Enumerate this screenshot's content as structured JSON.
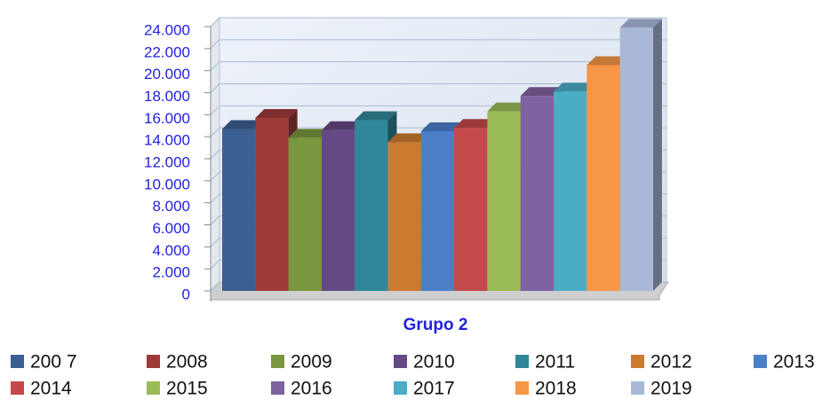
{
  "chart_data": {
    "type": "bar3d",
    "categories": [
      "Grupo 2"
    ],
    "series": [
      {
        "name": "200 7",
        "color": "#3c5f92",
        "values": [
          14700
        ]
      },
      {
        "name": "2008",
        "color": "#9e3a38",
        "values": [
          15700
        ]
      },
      {
        "name": "2009",
        "color": "#7a963e",
        "values": [
          13900
        ]
      },
      {
        "name": "2010",
        "color": "#654985",
        "values": [
          14600
        ]
      },
      {
        "name": "2011",
        "color": "#2f8799",
        "values": [
          15500
        ]
      },
      {
        "name": "2012",
        "color": "#cc7a30",
        "values": [
          13500
        ]
      },
      {
        "name": "2013",
        "color": "#4a7fc8",
        "values": [
          14500
        ]
      },
      {
        "name": "2014",
        "color": "#c4494a",
        "values": [
          14800
        ]
      },
      {
        "name": "2015",
        "color": "#9bbb59",
        "values": [
          16300
        ]
      },
      {
        "name": "2016",
        "color": "#7f62a0",
        "values": [
          17700
        ]
      },
      {
        "name": "2017",
        "color": "#4bacc6",
        "values": [
          18100
        ]
      },
      {
        "name": "2018",
        "color": "#f79646",
        "values": [
          20500
        ]
      },
      {
        "name": "2019",
        "color": "#aab8d8",
        "values": [
          23900
        ]
      }
    ],
    "ylim": [
      0,
      24000
    ],
    "yticks": [
      0,
      {
        "value": 2000,
        "label": "2.000"
      },
      {
        "value": 4000,
        "label": "4.000"
      },
      {
        "value": 6000,
        "label": "6.000"
      },
      {
        "value": 8000,
        "label": "8.000"
      },
      {
        "value": 10000,
        "label": "10.000"
      },
      {
        "value": 12000,
        "label": "12.000"
      },
      {
        "value": 14000,
        "label": "14.000"
      },
      {
        "value": 16000,
        "label": "16.000"
      },
      {
        "value": 18000,
        "label": "18.000"
      },
      {
        "value": 20000,
        "label": "20.000"
      },
      {
        "value": 22000,
        "label": "22.000"
      },
      {
        "value": 24000,
        "label": "24.000"
      }
    ],
    "grid": true
  }
}
